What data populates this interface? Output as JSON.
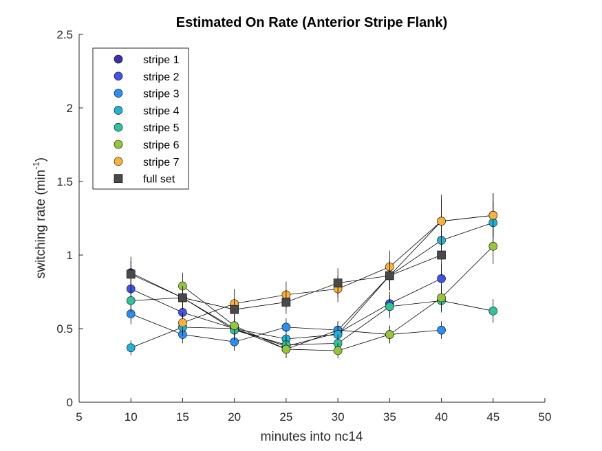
{
  "chart_data": {
    "type": "scatter",
    "title": "Estimated On Rate (Anterior Stripe Flank)",
    "xlabel": "minutes into nc14",
    "ylabel_main": "switching rate (min",
    "ylabel_sup": "-1",
    "ylabel_close": ")",
    "xlim": [
      5,
      50
    ],
    "ylim": [
      0,
      2.5
    ],
    "xticks": [
      5,
      10,
      15,
      20,
      25,
      30,
      35,
      40,
      45,
      50
    ],
    "yticks": [
      0,
      0.5,
      1,
      1.5,
      2,
      2.5
    ],
    "xtick_labels": [
      "5",
      "10",
      "15",
      "20",
      "25",
      "30",
      "35",
      "40",
      "45",
      "50"
    ],
    "ytick_labels": [
      "0",
      "0.5",
      "1",
      "1.5",
      "2",
      "2.5"
    ],
    "legend_position": "top-left",
    "grid": false,
    "series": [
      {
        "name": "stripe 1",
        "color": "#3a2fb0",
        "marker": "circle",
        "points": [
          {
            "x": 10,
            "y": 0.88,
            "err": 0.08
          },
          {
            "x": 15,
            "y": 0.71,
            "err": 0.07
          },
          {
            "x": 20,
            "y": 0.5,
            "err": 0.07
          },
          {
            "x": 25,
            "y": 0.36,
            "err": 0.06
          },
          {
            "x": 30,
            "y": 0.49,
            "err": 0.06
          },
          {
            "x": 35,
            "y": 0.86,
            "err": 0.1
          },
          {
            "x": 40,
            "y": 1.23,
            "err": 0.15
          },
          {
            "x": 45,
            "y": 1.27,
            "err": 0.15
          }
        ]
      },
      {
        "name": "stripe 2",
        "color": "#4055e8",
        "marker": "circle",
        "points": [
          {
            "x": 10,
            "y": 0.77,
            "err": 0.08
          },
          {
            "x": 15,
            "y": 0.61,
            "err": 0.07
          },
          {
            "x": 20,
            "y": 0.5,
            "err": 0.07
          },
          {
            "x": 25,
            "y": 0.38,
            "err": 0.06
          },
          {
            "x": 30,
            "y": 0.47,
            "err": 0.06
          },
          {
            "x": 35,
            "y": 0.67,
            "err": 0.08
          },
          {
            "x": 40,
            "y": 0.84,
            "err": 0.1
          }
        ]
      },
      {
        "name": "stripe 3",
        "color": "#2a8ff2",
        "marker": "circle",
        "points": [
          {
            "x": 10,
            "y": 0.6,
            "err": 0.07
          },
          {
            "x": 15,
            "y": 0.46,
            "err": 0.06
          },
          {
            "x": 20,
            "y": 0.41,
            "err": 0.06
          },
          {
            "x": 25,
            "y": 0.51,
            "err": 0.06
          },
          {
            "x": 30,
            "y": 0.49,
            "err": 0.06
          },
          {
            "x": 35,
            "y": 0.46,
            "err": 0.06
          },
          {
            "x": 40,
            "y": 0.49,
            "err": 0.06
          }
        ]
      },
      {
        "name": "stripe 4",
        "color": "#1fb4d6",
        "marker": "circle",
        "points": [
          {
            "x": 10,
            "y": 0.37,
            "err": 0.05
          },
          {
            "x": 15,
            "y": 0.51,
            "err": 0.06
          },
          {
            "x": 20,
            "y": 0.5,
            "err": 0.06
          },
          {
            "x": 25,
            "y": 0.43,
            "err": 0.06
          },
          {
            "x": 30,
            "y": 0.46,
            "err": 0.06
          },
          {
            "x": 35,
            "y": 0.86,
            "err": 0.1
          },
          {
            "x": 40,
            "y": 1.1,
            "err": 0.13
          },
          {
            "x": 45,
            "y": 1.22,
            "err": 0.14
          }
        ]
      },
      {
        "name": "stripe 5",
        "color": "#2ec39a",
        "marker": "circle",
        "points": [
          {
            "x": 10,
            "y": 0.69,
            "err": 0.08
          },
          {
            "x": 15,
            "y": 0.71,
            "err": 0.08
          },
          {
            "x": 20,
            "y": 0.49,
            "err": 0.07
          },
          {
            "x": 25,
            "y": 0.39,
            "err": 0.06
          },
          {
            "x": 30,
            "y": 0.4,
            "err": 0.06
          },
          {
            "x": 35,
            "y": 0.65,
            "err": 0.08
          },
          {
            "x": 40,
            "y": 0.69,
            "err": 0.08
          },
          {
            "x": 45,
            "y": 0.62,
            "err": 0.08
          }
        ]
      },
      {
        "name": "stripe 6",
        "color": "#96c53a",
        "marker": "circle",
        "points": [
          {
            "x": 15,
            "y": 0.79,
            "err": 0.09
          },
          {
            "x": 20,
            "y": 0.52,
            "err": 0.07
          },
          {
            "x": 25,
            "y": 0.36,
            "err": 0.06
          },
          {
            "x": 30,
            "y": 0.35,
            "err": 0.05
          },
          {
            "x": 35,
            "y": 0.46,
            "err": 0.06
          },
          {
            "x": 40,
            "y": 0.71,
            "err": 0.09
          },
          {
            "x": 45,
            "y": 1.06,
            "err": 0.12
          }
        ]
      },
      {
        "name": "stripe 7",
        "color": "#fbb13a",
        "marker": "circle",
        "points": [
          {
            "x": 15,
            "y": 0.54,
            "err": 0.07
          },
          {
            "x": 20,
            "y": 0.67,
            "err": 0.1
          },
          {
            "x": 25,
            "y": 0.73,
            "err": 0.09
          },
          {
            "x": 30,
            "y": 0.77,
            "err": 0.09
          },
          {
            "x": 35,
            "y": 0.92,
            "err": 0.11
          },
          {
            "x": 40,
            "y": 1.23,
            "err": 0.18
          },
          {
            "x": 45,
            "y": 1.27,
            "err": 0.15
          }
        ]
      },
      {
        "name": "full set",
        "color": "#4a4a4a",
        "marker": "square",
        "points": [
          {
            "x": 10,
            "y": 0.87,
            "err": 0.12
          },
          {
            "x": 15,
            "y": 0.71,
            "err": 0.08
          },
          {
            "x": 20,
            "y": 0.63,
            "err": 0.07
          },
          {
            "x": 25,
            "y": 0.68,
            "err": 0.08
          },
          {
            "x": 30,
            "y": 0.81,
            "err": 0.1
          },
          {
            "x": 35,
            "y": 0.86,
            "err": 0.1
          },
          {
            "x": 40,
            "y": 1.0,
            "err": 0.14
          }
        ]
      }
    ]
  }
}
